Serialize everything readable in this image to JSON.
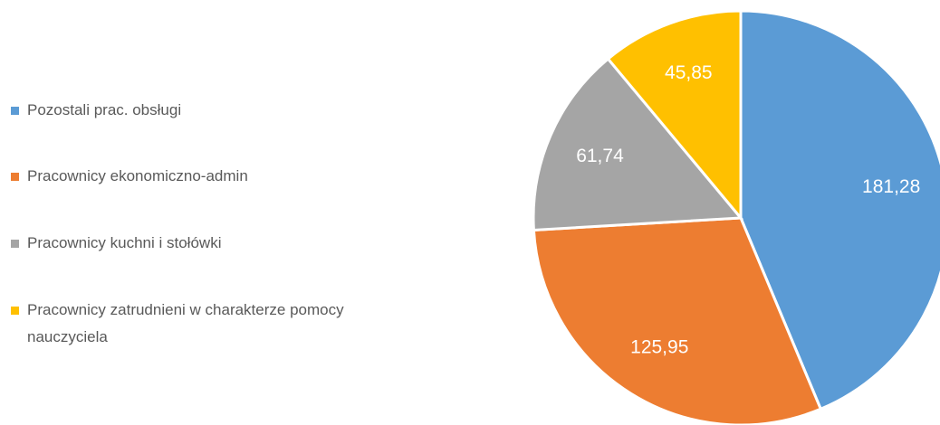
{
  "chart_data": {
    "type": "pie",
    "categories": [
      "Pozostali prac. obsługi",
      "Pracownicy ekonomiczno-admin",
      "Pracownicy kuchni i stołówki",
      "Pracownicy zatrudnieni w charakterze pomocy nauczyciela"
    ],
    "values": [
      181.28,
      125.95,
      61.74,
      45.85
    ],
    "value_labels": [
      "181,28",
      "125,95",
      "61,74",
      "45,85"
    ],
    "colors": [
      "#5b9bd5",
      "#ed7d31",
      "#a5a5a5",
      "#ffc000"
    ],
    "legend": "left"
  }
}
